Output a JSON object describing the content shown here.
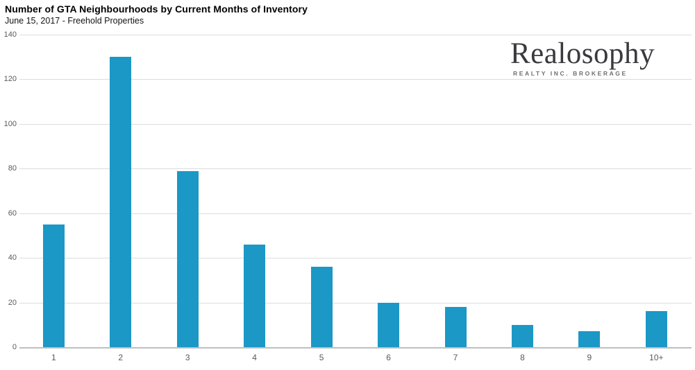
{
  "header": {
    "title": "Number of GTA Neighbourhoods by Current Months of Inventory",
    "subtitle": "June 15, 2017 - Freehold Properties"
  },
  "logo": {
    "name": "Realosophy",
    "tagline": "REALTY INC. BROKERAGE"
  },
  "chart_data": {
    "type": "bar",
    "title": "Number of GTA Neighbourhoods by Current Months of Inventory",
    "subtitle": "June 15, 2017 - Freehold Properties",
    "categories": [
      "1",
      "2",
      "3",
      "4",
      "5",
      "6",
      "7",
      "8",
      "9",
      "10+"
    ],
    "values": [
      55,
      130,
      79,
      46,
      36,
      20,
      18,
      10,
      7,
      16
    ],
    "xlabel": "",
    "ylabel": "",
    "ylim": [
      0,
      140
    ],
    "ytick_step": 20,
    "yticks": [
      0,
      20,
      40,
      60,
      80,
      100,
      120,
      140
    ],
    "grid": true,
    "legend": "none",
    "colors": {
      "bar": "#1b98c6",
      "gridline": "#dcdcdc",
      "axis_line": "#bfbfbf",
      "tick_label": "#595959",
      "title": "#000000",
      "logo_text": "#3a3a3e",
      "logo_tagline": "#6f6f73"
    }
  }
}
